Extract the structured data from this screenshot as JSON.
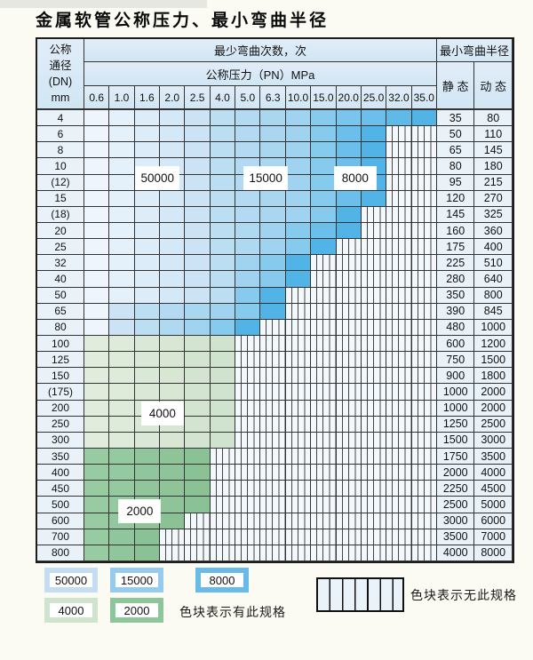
{
  "page": {
    "title": "金属软管公称压力、最小弯曲半径"
  },
  "table": {
    "header": {
      "dn_label_lines": [
        "公称",
        "通径",
        "(DN)",
        "mm"
      ],
      "cycles_label": "最少弯曲次数，次",
      "pressure_label": "公称压力（PN）MPa",
      "radius_label": "最小弯曲半径",
      "static_label": "静 态",
      "dynamic_label": "动 态",
      "pressures": [
        "0.6",
        "1.0",
        "1.6",
        "2.0",
        "2.5",
        "4.0",
        "5.0",
        "6.3",
        "10.0",
        "15.0",
        "20.0",
        "25.0",
        "32.0",
        "35.0"
      ]
    },
    "rows": [
      {
        "dn": "4",
        "static": "35",
        "dynamic": "80",
        "zone": "blue",
        "colored": 14,
        "light": 5,
        "medium": 9
      },
      {
        "dn": "6",
        "static": "50",
        "dynamic": "110",
        "zone": "blue",
        "colored": 12,
        "light": 5,
        "medium": 9
      },
      {
        "dn": "8",
        "static": "65",
        "dynamic": "145",
        "zone": "blue",
        "colored": 12,
        "light": 5,
        "medium": 9
      },
      {
        "dn": "10",
        "static": "80",
        "dynamic": "180",
        "zone": "blue",
        "colored": 12,
        "light": 5,
        "medium": 9
      },
      {
        "dn": "(12)",
        "static": "95",
        "dynamic": "215",
        "zone": "blue",
        "colored": 12,
        "light": 5,
        "medium": 9
      },
      {
        "dn": "15",
        "static": "120",
        "dynamic": "270",
        "zone": "blue",
        "colored": 12,
        "light": 5,
        "medium": 9
      },
      {
        "dn": "(18)",
        "static": "145",
        "dynamic": "325",
        "zone": "blue",
        "colored": 11,
        "light": 5,
        "medium": 9
      },
      {
        "dn": "20",
        "static": "160",
        "dynamic": "360",
        "zone": "blue",
        "colored": 11,
        "light": 5,
        "medium": 8
      },
      {
        "dn": "25",
        "static": "175",
        "dynamic": "400",
        "zone": "blue",
        "colored": 10,
        "light": 5,
        "medium": 8
      },
      {
        "dn": "32",
        "static": "225",
        "dynamic": "510",
        "zone": "blue",
        "colored": 9,
        "light": 5,
        "medium": 7
      },
      {
        "dn": "40",
        "static": "280",
        "dynamic": "640",
        "zone": "blue",
        "colored": 9,
        "light": 5,
        "medium": 7
      },
      {
        "dn": "50",
        "static": "350",
        "dynamic": "800",
        "zone": "blue",
        "colored": 8,
        "light": 5,
        "medium": 6
      },
      {
        "dn": "65",
        "static": "390",
        "dynamic": "845",
        "zone": "blue",
        "colored": 8,
        "light": 2,
        "medium": 6
      },
      {
        "dn": "80",
        "static": "480",
        "dynamic": "1000",
        "zone": "blue",
        "colored": 7,
        "light": 2,
        "medium": 5
      },
      {
        "dn": "100",
        "static": "600",
        "dynamic": "1200",
        "zone": "green",
        "shade": "light",
        "colored": 6
      },
      {
        "dn": "125",
        "static": "750",
        "dynamic": "1500",
        "zone": "green",
        "shade": "light",
        "colored": 6
      },
      {
        "dn": "150",
        "static": "900",
        "dynamic": "1800",
        "zone": "green",
        "shade": "light",
        "colored": 6
      },
      {
        "dn": "(175)",
        "static": "1000",
        "dynamic": "2000",
        "zone": "green",
        "shade": "light",
        "colored": 6
      },
      {
        "dn": "200",
        "static": "1000",
        "dynamic": "2000",
        "zone": "green",
        "shade": "light",
        "colored": 6
      },
      {
        "dn": "250",
        "static": "1250",
        "dynamic": "2500",
        "zone": "green",
        "shade": "light",
        "colored": 6
      },
      {
        "dn": "300",
        "static": "1500",
        "dynamic": "3000",
        "zone": "green",
        "shade": "light",
        "colored": 6
      },
      {
        "dn": "350",
        "static": "1750",
        "dynamic": "3500",
        "zone": "green",
        "shade": "medium",
        "colored": 5
      },
      {
        "dn": "400",
        "static": "2000",
        "dynamic": "4000",
        "zone": "green",
        "shade": "medium",
        "colored": 5
      },
      {
        "dn": "450",
        "static": "2250",
        "dynamic": "4500",
        "zone": "green",
        "shade": "medium",
        "colored": 5
      },
      {
        "dn": "500",
        "static": "2500",
        "dynamic": "5000",
        "zone": "green",
        "shade": "medium",
        "colored": 5
      },
      {
        "dn": "600",
        "static": "3000",
        "dynamic": "6000",
        "zone": "green",
        "shade": "medium",
        "colored": 4
      },
      {
        "dn": "700",
        "static": "3500",
        "dynamic": "7000",
        "zone": "green",
        "shade": "medium",
        "colored": 3
      },
      {
        "dn": "800",
        "static": "4000",
        "dynamic": "8000",
        "zone": "green",
        "shade": "medium",
        "colored": 3
      }
    ],
    "overlay_labels": [
      {
        "text": "50000",
        "cx_col": 2.9,
        "cy_row": 4.2
      },
      {
        "text": "15000",
        "cx_col": 7.2,
        "cy_row": 4.2
      },
      {
        "text": "8000",
        "cx_col": 10.75,
        "cy_row": 4.2
      },
      {
        "text": "4000",
        "cx_col": 3.1,
        "cy_row": 18.8
      },
      {
        "text": "2000",
        "cx_col": 2.2,
        "cy_row": 24.9
      }
    ]
  },
  "legend": {
    "available_label": "色块表示有此规格",
    "unavailable_label": "色块表示无此规格",
    "swatches": [
      {
        "label": "50000",
        "color": "#c3ddf2"
      },
      {
        "label": "15000",
        "color": "#94cbee"
      },
      {
        "label": "8000",
        "color": "#68bbe8"
      },
      {
        "label": "4000",
        "color": "#cfe4cd"
      },
      {
        "label": "2000",
        "color": "#8dc69b"
      }
    ]
  },
  "colors": {
    "blue_light": [
      "#eef5fc",
      "#cbe3f5"
    ],
    "blue_medium": [
      "#bcdef3",
      "#a0d3ef"
    ],
    "blue_dark": [
      "#86caed",
      "#52b4e6"
    ],
    "green_light": [
      "#e1ecdd",
      "#d0e3ce"
    ],
    "green_medium": [
      "#98cba2",
      "#8ac195"
    ],
    "striped_bg": "#f3f8fc",
    "stripe_line": "#454545",
    "grid_line": "#333333",
    "header_bg": "#d8e9f5",
    "side_bg": "#eaf2f9"
  }
}
